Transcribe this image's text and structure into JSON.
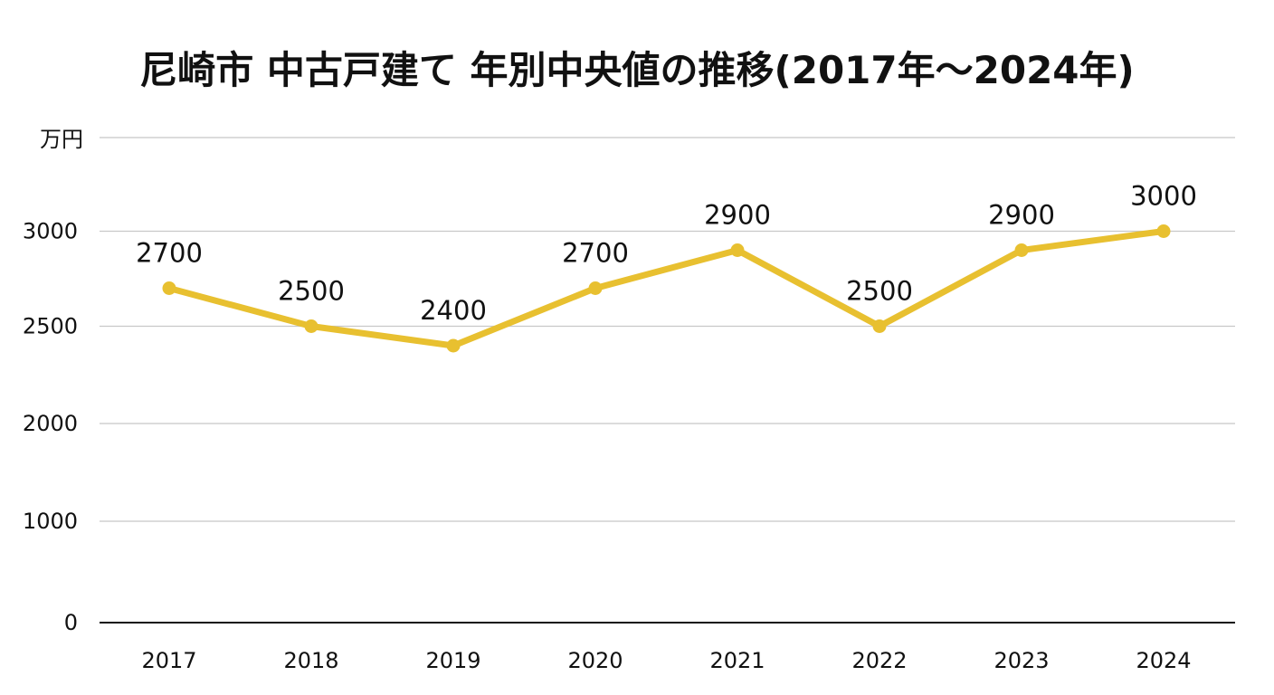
{
  "chart_data": {
    "type": "line",
    "title": "尼崎市 中古戸建て 年別中央値の推移(2017年～2024年)",
    "ylabel": "万円",
    "xlabel": "",
    "categories": [
      "2017",
      "2018",
      "2019",
      "2020",
      "2021",
      "2022",
      "2023",
      "2024"
    ],
    "series": [
      {
        "values": [
          2700,
          2500,
          2400,
          2700,
          2900,
          2500,
          2900,
          3000
        ]
      }
    ],
    "y_ticks": [
      {
        "label": "0",
        "value": 0
      },
      {
        "label": "1000",
        "value": 1000
      },
      {
        "label": "2000",
        "value": 2000
      },
      {
        "label": "2500",
        "value": 2500
      },
      {
        "label": "3000",
        "value": 3000
      }
    ],
    "y_axis_break": "broken scale (values 0-2000 compressed, 2000-3000 expanded)",
    "grid": true,
    "data_labels": true,
    "legend": "none",
    "colors": {
      "line": "#E8C030",
      "grid": "#C8C8C8",
      "axis": "#111111"
    }
  }
}
